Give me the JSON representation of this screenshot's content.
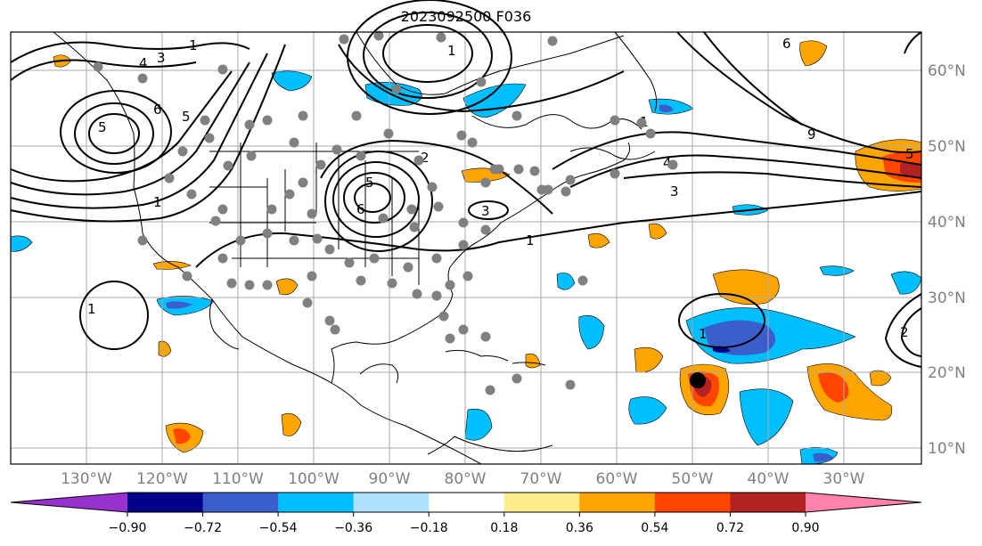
{
  "title": "2023092500 F036",
  "lon_labels": [
    "130°W",
    "120°W",
    "110°W",
    "100°W",
    "90°W",
    "80°W",
    "70°W",
    "60°W",
    "50°W",
    "40°W",
    "30°W"
  ],
  "lat_labels": [
    "10°N",
    "20°N",
    "30°N",
    "40°N",
    "50°N",
    "60°N"
  ],
  "colorbar": {
    "ticks": [
      "−0.90",
      "−0.72",
      "−0.54",
      "−0.36",
      "−0.18",
      "0.18",
      "0.36",
      "0.54",
      "0.72",
      "0.90"
    ],
    "colors": [
      "#9932cc",
      "#00008b",
      "#3a5fcd",
      "#00bfff",
      "#b0e2ff",
      "#ffffff",
      "#ffec8b",
      "#ffa500",
      "#ff4500",
      "#b22222",
      "#ff82ab"
    ]
  },
  "contour_labels": [
    "1",
    "4",
    "3",
    "6",
    "5",
    "5",
    "1",
    "2",
    "5",
    "6",
    "1",
    "3",
    "1",
    "4",
    "3",
    "9",
    "6",
    "1",
    "5",
    "1",
    "1",
    "2"
  ],
  "colors": {
    "positive": "#ffa500",
    "strong_positive": "#ff4500",
    "peak_positive": "#b22222",
    "negative": "#00bfff",
    "strong_negative": "#3a5fcd",
    "peak_negative": "#00008b",
    "stations": "#808080",
    "grid": "#a9a9a9"
  }
}
